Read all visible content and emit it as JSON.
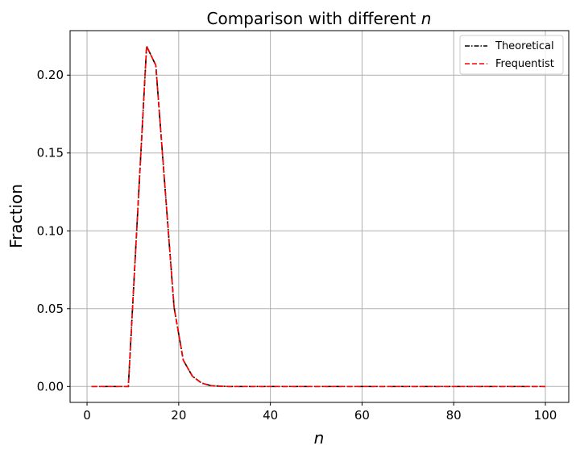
{
  "chart_data": {
    "type": "line",
    "title_prefix": "Comparison with different ",
    "title_var": "n",
    "xlabel": "n",
    "ylabel": "Fraction",
    "xlim": [
      -3.7,
      105.1
    ],
    "ylim": [
      -0.0102,
      0.2286
    ],
    "xticks": [
      0,
      20,
      40,
      60,
      80,
      100
    ],
    "xtick_labels": [
      "0",
      "20",
      "40",
      "60",
      "80",
      "100"
    ],
    "yticks": [
      0.0,
      0.05,
      0.1,
      0.15,
      0.2
    ],
    "ytick_labels": [
      "0.00",
      "0.05",
      "0.10",
      "0.15",
      "0.20"
    ],
    "grid": true,
    "legend_placement": "top-right",
    "x": [
      1,
      3,
      5,
      7,
      9,
      11,
      13,
      15,
      17,
      19,
      21,
      23,
      25,
      27,
      29,
      31,
      33,
      35,
      37,
      39,
      41,
      43,
      45,
      47,
      49,
      51,
      53,
      55,
      57,
      59,
      61,
      63,
      65,
      67,
      69,
      71,
      73,
      75,
      77,
      79,
      81,
      83,
      85,
      87,
      89,
      91,
      93,
      95,
      97,
      100
    ],
    "series": [
      {
        "name": "Theoretical",
        "color": "#000000",
        "style": "dashdot",
        "values": [
          0,
          0,
          0,
          0,
          0,
          0.109,
          0.2186,
          0.2064,
          0.128,
          0.0507,
          0.0169,
          0.0066,
          0.0022,
          0.0006,
          0.0002,
          0,
          0,
          0,
          0,
          0,
          0,
          0,
          0,
          0,
          0,
          0,
          0,
          0,
          0,
          0,
          0,
          0,
          0,
          0,
          0,
          0,
          0,
          0,
          0,
          0,
          0,
          0,
          0,
          0,
          0,
          0,
          0,
          0,
          0,
          0
        ]
      },
      {
        "name": "Frequentist",
        "color": "#ff0000",
        "style": "dashed",
        "values": [
          0,
          0,
          0,
          0,
          0,
          0.109,
          0.2186,
          0.2064,
          0.128,
          0.0507,
          0.0169,
          0.0066,
          0.0022,
          0.0006,
          0.0002,
          0,
          0,
          0,
          0,
          0,
          0,
          0,
          0,
          0,
          0,
          0,
          0,
          0,
          0,
          0,
          0,
          0,
          0,
          0,
          0,
          0,
          0,
          0,
          0,
          0,
          0,
          0,
          0,
          0,
          0,
          0,
          0,
          0,
          0,
          0
        ]
      }
    ]
  }
}
